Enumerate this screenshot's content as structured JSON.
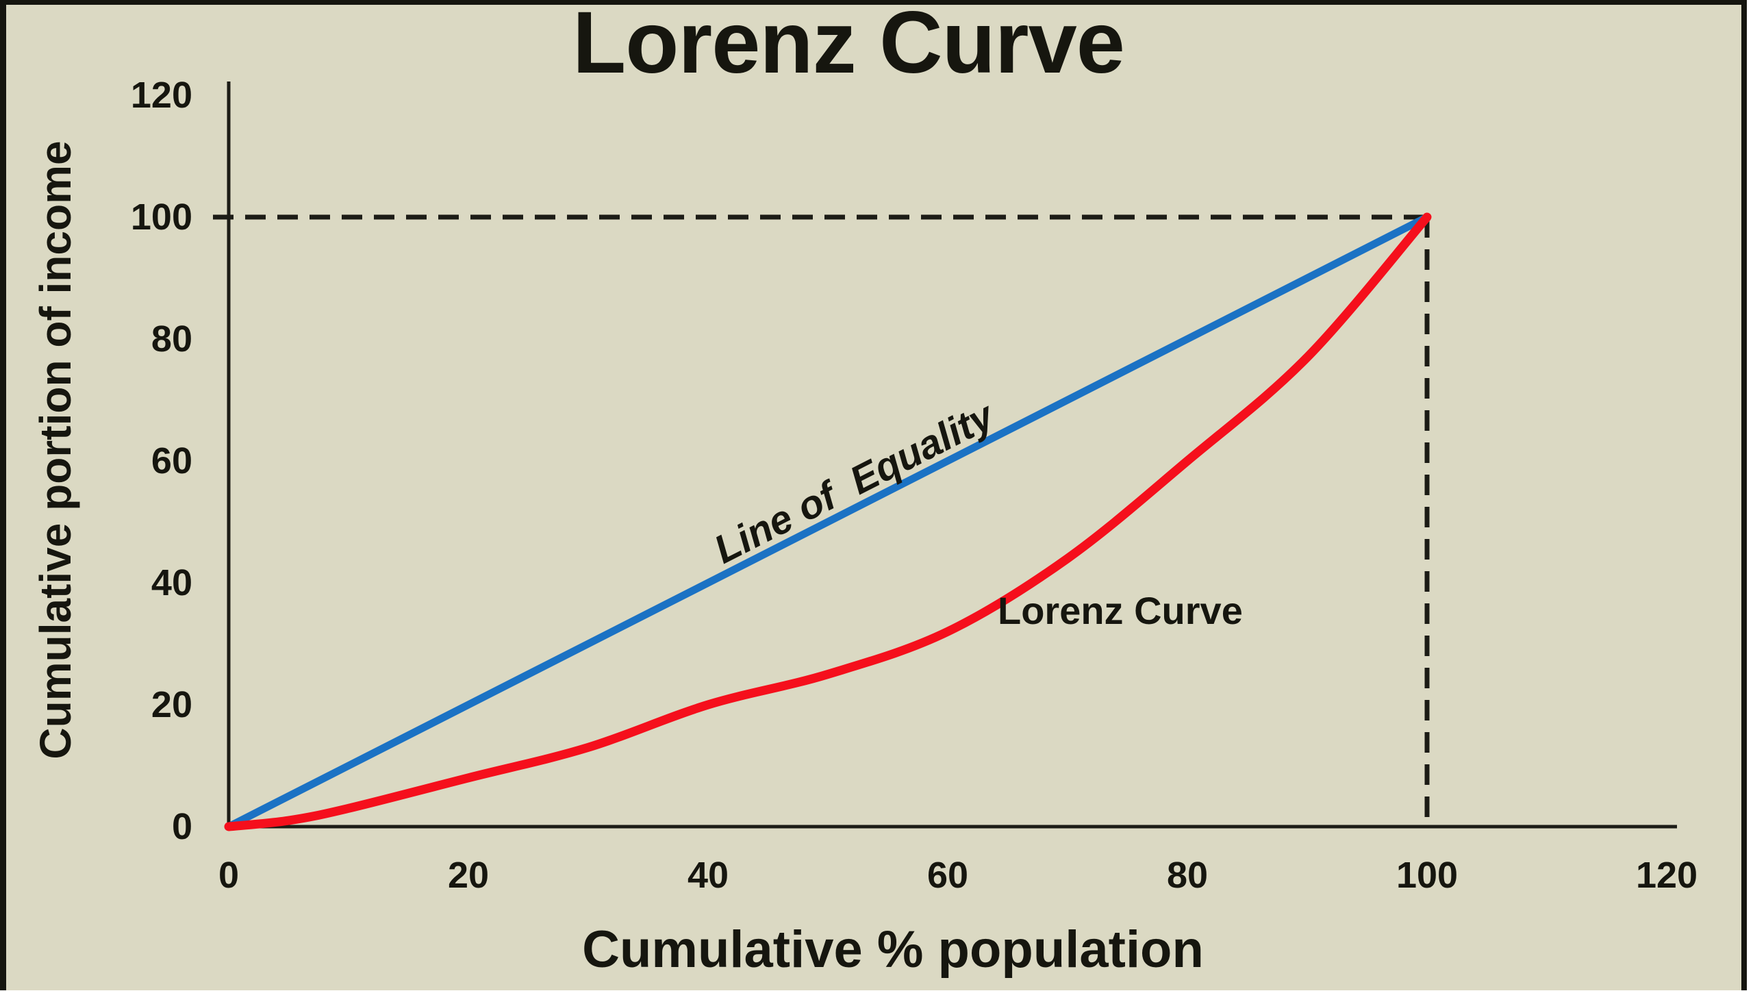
{
  "chart_data": {
    "type": "line",
    "title": "Lorenz Curve",
    "xlabel": "Cumulative % population",
    "ylabel": "Cumulative portion of income",
    "xlim": [
      0,
      120
    ],
    "ylim": [
      0,
      120
    ],
    "x_ticks": [
      "0",
      "20",
      "40",
      "60",
      "80",
      "100",
      "120"
    ],
    "y_ticks": [
      "0",
      "20",
      "40",
      "60",
      "80",
      "100",
      "120"
    ],
    "grid": false,
    "legend_position": "inline-labels",
    "series": [
      {
        "name": "Line of Equality",
        "label": "Line of  Equality",
        "color": "#1b72c4",
        "style": "straight",
        "points": [
          [
            0,
            0
          ],
          [
            100,
            100
          ]
        ]
      },
      {
        "name": "Lorenz Curve",
        "label": "Lorenz Curve",
        "color": "#f50f1c",
        "style": "smooth",
        "points": [
          [
            0,
            0
          ],
          [
            5,
            1
          ],
          [
            10,
            3
          ],
          [
            20,
            8
          ],
          [
            30,
            13
          ],
          [
            40,
            20
          ],
          [
            50,
            25
          ],
          [
            60,
            32
          ],
          [
            70,
            44
          ],
          [
            80,
            60
          ],
          [
            90,
            77
          ],
          [
            100,
            100
          ]
        ]
      }
    ],
    "guides": [
      {
        "name": "horizontal-dashed-guide",
        "from": [
          0,
          100
        ],
        "to": [
          100,
          100
        ],
        "style": "dashed"
      },
      {
        "name": "vertical-dashed-guide",
        "from": [
          100,
          100
        ],
        "to": [
          100,
          0
        ],
        "style": "dashed"
      }
    ]
  },
  "colors": {
    "background": "#dbd9c3",
    "frame_border": "#15150f",
    "axis": "#1c1c16",
    "text": "#16160f",
    "equality_line": "#1b72c4",
    "lorenz_line": "#f50f1c"
  }
}
